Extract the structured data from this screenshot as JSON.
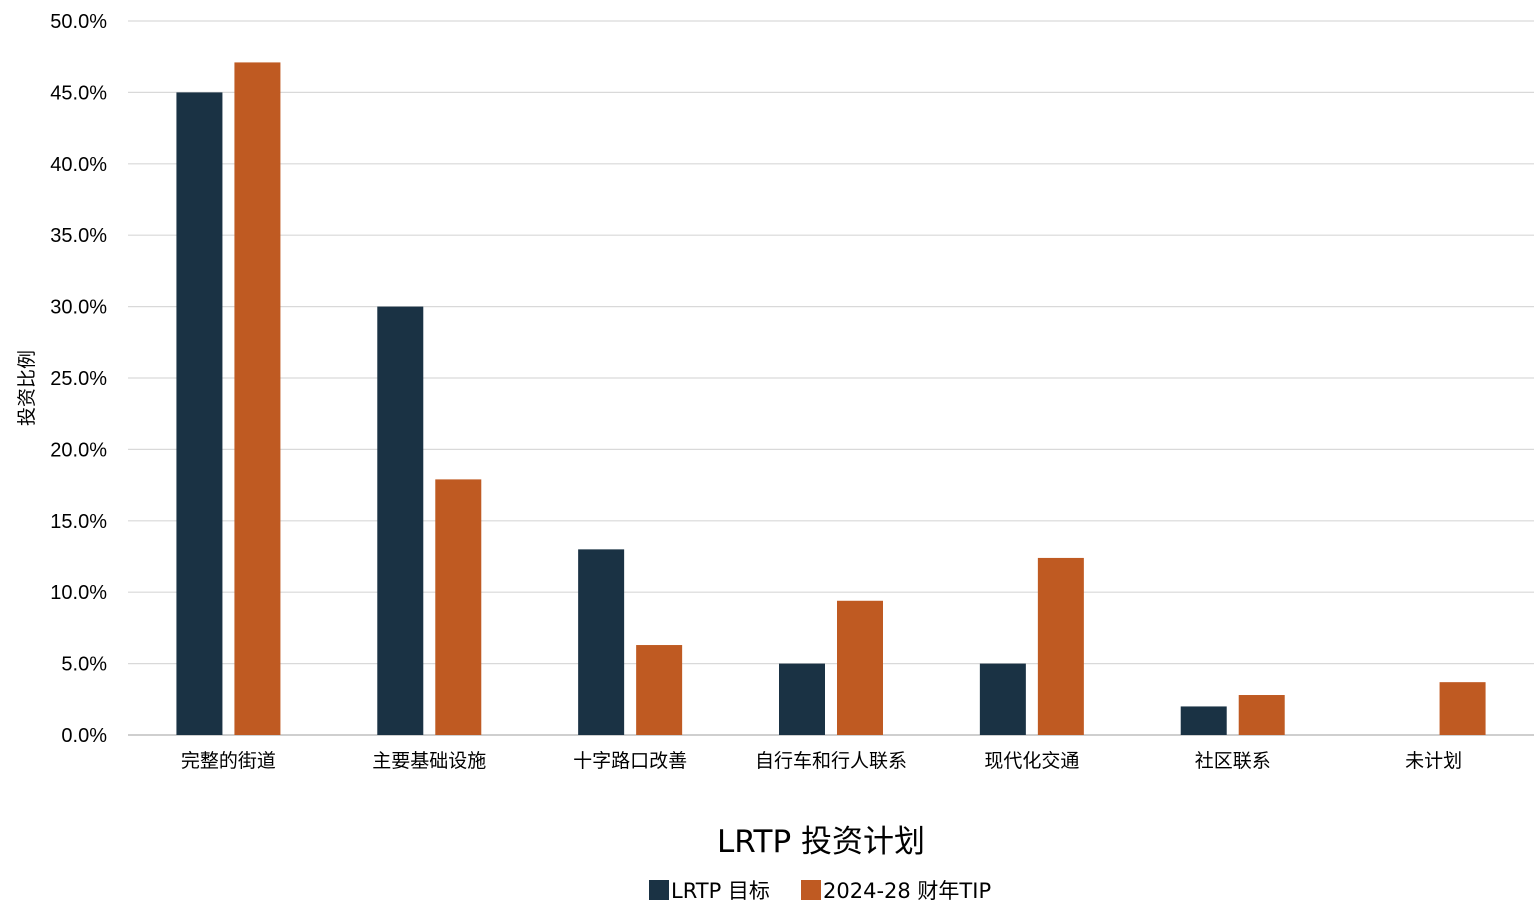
{
  "chart_data": {
    "type": "bar",
    "categories": [
      "完整的街道",
      "主要基础设施",
      "十字路口改善",
      "自行车和行人联系",
      "现代化交通",
      "社区联系",
      "未计划"
    ],
    "series": [
      {
        "name": "LRTP 目标",
        "values": [
          45.0,
          30.0,
          13.0,
          5.0,
          5.0,
          2.0,
          0.0
        ]
      },
      {
        "name": "2024-28 财年TIP",
        "values": [
          47.1,
          17.9,
          6.3,
          9.4,
          12.4,
          2.8,
          3.7
        ]
      }
    ],
    "colors": [
      "#1a3244",
      "#bf5a22"
    ],
    "title": "",
    "xlabel": "LRTP 投资计划",
    "ylabel": "投资比例",
    "ylim": [
      0,
      50
    ],
    "yticks": [
      "0.0%",
      "5.0%",
      "10.0%",
      "15.0%",
      "20.0%",
      "25.0%",
      "30.0%",
      "35.0%",
      "40.0%",
      "45.0%",
      "50.0%"
    ],
    "ytick_values": [
      0,
      5,
      10,
      15,
      20,
      25,
      30,
      35,
      40,
      45,
      50
    ],
    "grid": true,
    "legend_position": "bottom"
  }
}
